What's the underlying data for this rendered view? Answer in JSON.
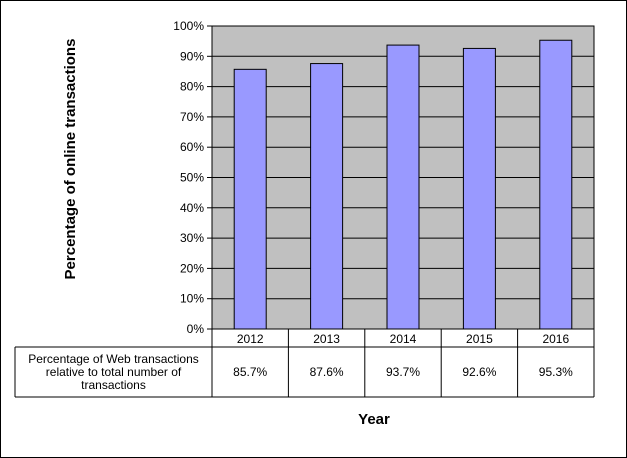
{
  "chart_data": {
    "type": "bar",
    "title": "",
    "xlabel": "Year",
    "ylabel": "Percentage of online transactions",
    "categories": [
      "2012",
      "2013",
      "2014",
      "2015",
      "2016"
    ],
    "series": [
      {
        "name": "Percentage of Web transactions relative to total number of transactions",
        "values": [
          85.7,
          87.6,
          93.7,
          92.6,
          95.3
        ],
        "labels": [
          "85.7%",
          "87.6%",
          "93.7%",
          "92.6%",
          "95.3%"
        ]
      }
    ],
    "ylim": [
      0,
      100
    ],
    "yticks": [
      "0%",
      "10%",
      "20%",
      "30%",
      "40%",
      "50%",
      "60%",
      "70%",
      "80%",
      "90%",
      "100%"
    ],
    "grid": true,
    "legend": "data-table-below",
    "colors": {
      "bar": "#9999ff",
      "plot_bg": "#c0c0c0",
      "grid": "#000000"
    }
  },
  "data_table": {
    "row_label_lines": [
      "Percentage of Web transactions",
      "relative to total number of",
      "transactions"
    ]
  }
}
